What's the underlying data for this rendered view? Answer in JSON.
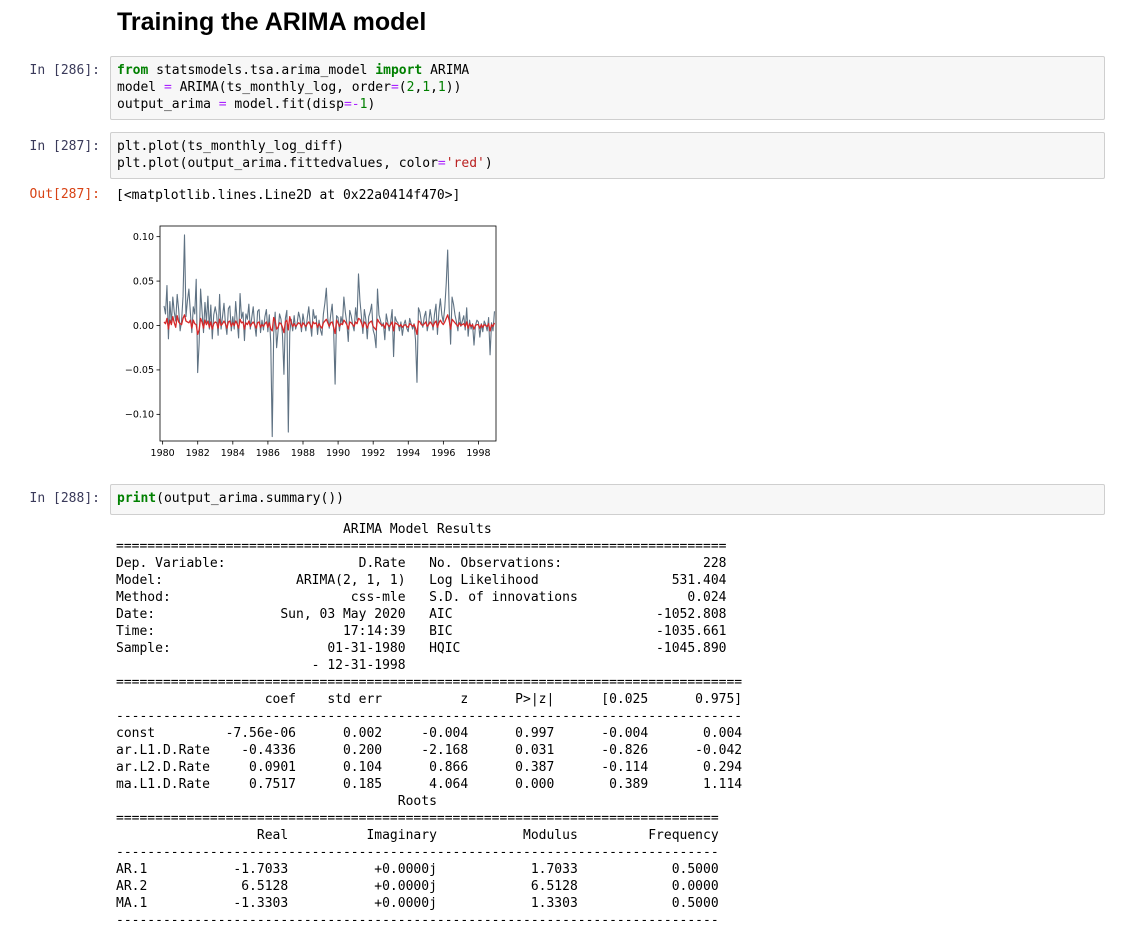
{
  "heading": "Training the ARIMA model",
  "cells": [
    {
      "prompt": "In [286]:",
      "lines": [
        [
          {
            "t": "from",
            "c": "kw"
          },
          {
            "t": " statsmodels.tsa.arima_model ",
            "c": ""
          },
          {
            "t": "import",
            "c": "kw"
          },
          {
            "t": " ARIMA",
            "c": ""
          }
        ],
        [
          {
            "t": "model ",
            "c": ""
          },
          {
            "t": "=",
            "c": "op"
          },
          {
            "t": " ARIMA(ts_monthly_log, order",
            "c": ""
          },
          {
            "t": "=",
            "c": "op"
          },
          {
            "t": "(",
            "c": ""
          },
          {
            "t": "2",
            "c": "num"
          },
          {
            "t": ",",
            "c": ""
          },
          {
            "t": "1",
            "c": "num"
          },
          {
            "t": ",",
            "c": ""
          },
          {
            "t": "1",
            "c": "num"
          },
          {
            "t": "))",
            "c": ""
          }
        ],
        [
          {
            "t": "output_arima ",
            "c": ""
          },
          {
            "t": "=",
            "c": "op"
          },
          {
            "t": " model.fit(disp",
            "c": ""
          },
          {
            "t": "=-",
            "c": "op"
          },
          {
            "t": "1",
            "c": "num"
          },
          {
            "t": ")",
            "c": ""
          }
        ]
      ]
    },
    {
      "prompt": "In [287]:",
      "lines": [
        [
          {
            "t": "plt.plot(ts_monthly_log_diff)",
            "c": ""
          }
        ],
        [
          {
            "t": "plt.plot(output_arima.fittedvalues, color",
            "c": ""
          },
          {
            "t": "=",
            "c": "op"
          },
          {
            "t": "'red'",
            "c": "str"
          },
          {
            "t": ")",
            "c": ""
          }
        ]
      ]
    },
    {
      "prompt": "In [288]:",
      "lines": [
        [
          {
            "t": "print",
            "c": "kw"
          },
          {
            "t": "(output_arima.summary())",
            "c": ""
          }
        ]
      ]
    }
  ],
  "out287": {
    "prompt": "Out[287]:",
    "text": "[<matplotlib.lines.Line2D at 0x22a0414f470>]"
  },
  "summary_text": "                             ARIMA Model Results                              \n==============================================================================\nDep. Variable:                 D.Rate   No. Observations:                  228\nModel:                 ARIMA(2, 1, 1)   Log Likelihood                 531.404\nMethod:                       css-mle   S.D. of innovations              0.024\nDate:                Sun, 03 May 2020   AIC                          -1052.808\nTime:                        17:14:39   BIC                          -1035.661\nSample:                    01-31-1980   HQIC                         -1045.890\n                         - 12-31-1998                                         \n================================================================================\n                   coef    std err          z      P>|z|      [0.025      0.975]\n--------------------------------------------------------------------------------\nconst         -7.56e-06      0.002     -0.004      0.997      -0.004       0.004\nar.L1.D.Rate    -0.4336      0.200     -2.168      0.031      -0.826      -0.042\nar.L2.D.Rate     0.0901      0.104      0.866      0.387      -0.114       0.294\nma.L1.D.Rate     0.7517      0.185      4.064      0.000       0.389       1.114\n                                    Roots                                    \n=============================================================================\n                  Real          Imaginary           Modulus         Frequency\n-----------------------------------------------------------------------------\nAR.1           -1.7033           +0.0000j            1.7033            0.5000\nAR.2            6.5128           +0.0000j            6.5128            0.0000\nMA.1           -1.3303           +0.0000j            1.3303            0.5000\n-----------------------------------------------------------------------------",
  "chart_data": {
    "type": "line",
    "xlim": [
      1979.85,
      1999.0
    ],
    "ylim": [
      -0.13,
      0.112
    ],
    "x_ticks": [
      "1980",
      "1982",
      "1984",
      "1986",
      "1988",
      "1990",
      "1992",
      "1994",
      "1996",
      "1998"
    ],
    "y_ticks": [
      "0.10",
      "0.05",
      "0.00",
      "−0.05",
      "−0.10"
    ],
    "colors": {
      "series1": "#5f7283",
      "series2": "#d62728"
    },
    "series": [
      {
        "x_start": 1980.08,
        "x_step": 0.08333,
        "values": [
          0.022,
          0.013,
          0.045,
          -0.015,
          0.027,
          0.002,
          0.032,
          0.015,
          0.005,
          0.035,
          0.018,
          -0.006,
          0.005,
          0.033,
          0.102,
          0.01,
          0.028,
          0.041,
          0.015,
          -0.008,
          0.021,
          0.013,
          0.052,
          -0.053,
          -0.02,
          0.041,
          0.016,
          -0.008,
          0.026,
          0.004,
          0.033,
          -0.004,
          0.023,
          -0.015,
          0.012,
          0.021,
          0.012,
          -0.011,
          0.035,
          -0.004,
          0.01,
          0.025,
          0.002,
          -0.01,
          0.019,
          0.022,
          -0.006,
          0.01,
          -0.004,
          0.027,
          0.005,
          -0.014,
          0.036,
          0.008,
          0.015,
          -0.017,
          0.013,
          0.007,
          0.024,
          -0.004,
          0.009,
          0.021,
          0.001,
          -0.012,
          0.016,
          0.018,
          -0.008,
          0.006,
          -0.005,
          0.01,
          0.018,
          -0.007,
          0.012,
          -0.02,
          -0.125,
          -0.009,
          0.015,
          -0.025,
          -0.006,
          0.013,
          0.007,
          -0.01,
          -0.055,
          0.008,
          0.017,
          -0.12,
          -0.008,
          0.007,
          -0.006,
          0.011,
          -0.004,
          0.002,
          0.015,
          0.008,
          -0.007,
          0.013,
          0.003,
          -0.006,
          0.009,
          0.021,
          0.002,
          -0.012,
          0.018,
          0.008,
          0.011,
          -0.01,
          0.006,
          -0.005,
          -0.011,
          0.013,
          0.025,
          0.042,
          0.008,
          -0.003,
          0.012,
          0.024,
          -0.005,
          -0.066,
          0.011,
          0.009,
          -0.006,
          0.01,
          0.002,
          0.032,
          0.015,
          0.003,
          -0.018,
          0.017,
          0.011,
          0.001,
          -0.006,
          0.02,
          0.006,
          0.058,
          0.028,
          0.01,
          -0.009,
          0.018,
          0.007,
          -0.015,
          0.01,
          0.015,
          0.024,
          -0.005,
          -0.011,
          -0.025,
          0.041,
          0.012,
          0.006,
          -0.001,
          0.003,
          -0.016,
          0.013,
          0.004,
          -0.006,
          0.004,
          0.018,
          -0.035,
          0.01,
          0.005,
          0.003,
          -0.006,
          0.004,
          -0.011,
          0.001,
          0.006,
          -0.003,
          -0.007,
          0.008,
          0.002,
          -0.004,
          0.002,
          -0.016,
          -0.064,
          0.02,
          0.015,
          0.004,
          -0.002,
          0.01,
          0.016,
          -0.006,
          0.003,
          0.018,
          0.007,
          -0.005,
          0.013,
          0.024,
          -0.01,
          0.015,
          0.03,
          0.012,
          0.004,
          0.02,
          0.047,
          0.085,
          0.02,
          -0.021,
          0.032,
          0.024,
          0.012,
          0.004,
          -0.006,
          0.015,
          -0.001,
          0.005,
          0.011,
          -0.005,
          0.02,
          -0.012,
          0.006,
          -0.004,
          0.002,
          -0.022,
          0.0,
          0.006,
          0.004,
          -0.013,
          0.002,
          -0.007,
          0.005,
          0.001,
          -0.006,
          0.009,
          -0.033,
          0.003,
          -0.006,
          0.016
        ]
      },
      {
        "x_start": 1980.08,
        "x_step": 0.08333,
        "values": [
          0.004,
          0.002,
          0.008,
          -0.004,
          0.006,
          0.001,
          0.01,
          0.003,
          -0.002,
          0.011,
          0.004,
          0.002,
          0.001,
          0.008,
          0.012,
          0.005,
          0.004,
          0.003,
          0.006,
          -0.003,
          0.006,
          0.002,
          0.001,
          -0.01,
          -0.005,
          0.008,
          0.004,
          -0.003,
          0.006,
          0.001,
          0.005,
          -0.002,
          0.004,
          -0.004,
          0.002,
          0.004,
          0.003,
          -0.003,
          0.007,
          0.0,
          0.002,
          0.005,
          0.002,
          -0.003,
          0.004,
          0.005,
          -0.001,
          0.003,
          0.0,
          0.005,
          0.002,
          -0.003,
          0.007,
          0.003,
          0.004,
          -0.004,
          0.003,
          0.001,
          0.005,
          -0.001,
          0.002,
          0.004,
          0.001,
          -0.003,
          0.003,
          0.004,
          -0.002,
          0.001,
          -0.001,
          0.002,
          0.004,
          -0.002,
          0.003,
          -0.004,
          -0.006,
          0.009,
          0.005,
          -0.004,
          -0.002,
          0.003,
          0.002,
          -0.002,
          -0.008,
          0.004,
          0.006,
          -0.005,
          0.01,
          0.003,
          -0.001,
          0.002,
          -0.001,
          0.001,
          0.003,
          0.002,
          -0.002,
          0.003,
          0.001,
          -0.001,
          0.002,
          0.004,
          0.001,
          -0.003,
          0.004,
          0.002,
          0.003,
          -0.002,
          0.002,
          -0.001,
          -0.003,
          0.003,
          0.005,
          0.007,
          0.003,
          -0.001,
          0.003,
          0.004,
          -0.002,
          -0.009,
          0.006,
          0.003,
          -0.001,
          0.002,
          0.001,
          0.006,
          0.004,
          0.001,
          -0.004,
          0.004,
          0.003,
          0.001,
          -0.001,
          0.004,
          0.002,
          0.008,
          0.007,
          0.003,
          -0.002,
          0.004,
          0.002,
          -0.003,
          0.002,
          0.004,
          0.005,
          -0.001,
          -0.003,
          -0.005,
          0.007,
          0.004,
          0.002,
          0.0,
          0.001,
          -0.003,
          0.003,
          0.001,
          -0.001,
          0.001,
          0.004,
          -0.006,
          0.003,
          0.002,
          0.001,
          -0.001,
          0.001,
          -0.002,
          0.0,
          0.001,
          -0.001,
          -0.002,
          0.002,
          0.001,
          -0.001,
          0.001,
          -0.003,
          -0.01,
          0.005,
          0.004,
          0.001,
          0.0,
          0.002,
          0.004,
          -0.001,
          0.001,
          0.004,
          0.002,
          -0.001,
          0.003,
          0.005,
          -0.002,
          0.003,
          0.006,
          0.003,
          0.001,
          0.004,
          0.008,
          0.012,
          0.006,
          -0.004,
          0.007,
          0.005,
          0.003,
          0.001,
          -0.001,
          0.003,
          0.0,
          0.001,
          0.002,
          -0.001,
          0.004,
          -0.003,
          0.002,
          -0.001,
          0.001,
          -0.004,
          0.0,
          0.001,
          0.001,
          -0.003,
          0.001,
          -0.002,
          0.001,
          0.0,
          -0.001,
          0.002,
          -0.006,
          0.001,
          -0.001,
          0.003
        ]
      }
    ]
  }
}
